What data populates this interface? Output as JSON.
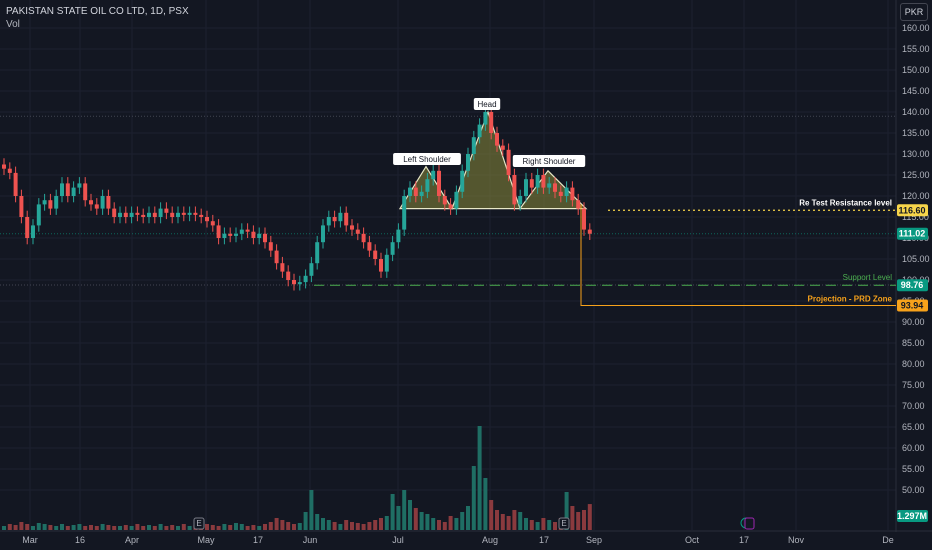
{
  "header": {
    "symbol_line": "PAKISTAN STATE OIL CO LTD, 1D, PSX",
    "volume_label": "Vol"
  },
  "currency_button": "PKR",
  "price_axis": {
    "ticks": [
      "160.00",
      "155.00",
      "150.00",
      "145.00",
      "140.00",
      "135.00",
      "130.00",
      "125.00",
      "120.00",
      "115.00",
      "110.00",
      "105.00",
      "100.00",
      "95.00",
      "90.00",
      "85.00",
      "80.00",
      "75.00",
      "70.00",
      "65.00",
      "60.00",
      "55.00",
      "50.00"
    ],
    "badges": [
      {
        "text": "116.60",
        "color": "#f7d54a",
        "text_color": "#131722"
      },
      {
        "text": "111.02",
        "color": "#089981",
        "text_color": "#ffffff"
      },
      {
        "text": "98.76",
        "color": "#089981",
        "text_color": "#ffffff"
      },
      {
        "text": "93.94",
        "color": "#f7a21b",
        "text_color": "#131722"
      },
      {
        "text": "1.297M",
        "color": "#089981",
        "text_color": "#ffffff"
      }
    ]
  },
  "time_axis": {
    "labels": [
      "Mar",
      "16",
      "Apr",
      "May",
      "17",
      "Jun",
      "Jul",
      "Aug",
      "17",
      "Sep",
      "Oct",
      "17",
      "Nov",
      "De"
    ]
  },
  "annotations": {
    "left_shoulder": "Left Shoulder",
    "head": "Head",
    "right_shoulder": "Right Shoulder",
    "resistance": "Re Test Resistance level",
    "support": "Support Level",
    "projection": "Projection - PRD Zone"
  },
  "event_markers": [
    "E",
    "E"
  ],
  "colors": {
    "background": "#131722",
    "up": "#26a69a",
    "down": "#ef5350",
    "pattern_fill": "#8a8a3a",
    "resistance": "#f7d54a",
    "support": "#4caf50",
    "projection": "#f7a21b"
  },
  "chart_data": {
    "type": "candlestick",
    "title": "PAKISTAN STATE OIL CO LTD, 1D, PSX",
    "ylim": [
      48,
      164
    ],
    "price_levels": {
      "resistance": 116.6,
      "last": 111.02,
      "support": 98.76,
      "projection": 93.94
    },
    "pattern": {
      "name": "Head and Shoulders",
      "points": [
        {
          "label": "neckline-start",
          "value": 117
        },
        {
          "label": "Left Shoulder",
          "value": 127
        },
        {
          "label": "trough",
          "value": 117
        },
        {
          "label": "Head",
          "value": 140
        },
        {
          "label": "trough",
          "value": 117
        },
        {
          "label": "Right Shoulder",
          "value": 126
        },
        {
          "label": "neckline-end",
          "value": 117
        }
      ]
    },
    "closes": [
      126.5,
      125.5,
      120,
      115,
      110,
      113,
      118,
      119,
      117,
      120,
      123,
      120,
      122,
      123,
      119,
      118,
      117,
      120,
      117,
      115,
      116,
      115,
      116,
      115.5,
      115,
      116,
      115,
      117,
      116,
      115,
      116,
      115.5,
      116,
      115.5,
      115,
      114,
      113,
      110,
      111,
      110.5,
      111,
      112,
      111.5,
      110,
      111,
      109,
      107,
      104,
      102,
      100,
      99,
      99.5,
      101,
      104,
      109,
      113,
      115,
      114,
      116,
      113,
      112,
      111,
      109,
      107,
      105,
      102,
      106,
      109,
      112,
      120,
      122,
      120,
      121,
      124,
      126,
      120,
      118,
      117,
      121,
      126,
      130,
      134,
      137,
      140,
      135,
      132,
      131,
      125,
      118,
      120,
      124,
      122,
      125,
      122,
      123,
      121,
      120,
      122,
      119,
      117,
      112,
      111.02
    ],
    "volumes_m": [
      0.2,
      0.3,
      0.25,
      0.4,
      0.3,
      0.2,
      0.35,
      0.3,
      0.25,
      0.2,
      0.3,
      0.2,
      0.25,
      0.3,
      0.2,
      0.25,
      0.2,
      0.3,
      0.25,
      0.2,
      0.2,
      0.25,
      0.2,
      0.3,
      0.2,
      0.25,
      0.2,
      0.3,
      0.2,
      0.25,
      0.2,
      0.3,
      0.2,
      0.25,
      0.2,
      0.3,
      0.25,
      0.2,
      0.3,
      0.25,
      0.35,
      0.3,
      0.2,
      0.25,
      0.2,
      0.3,
      0.4,
      0.6,
      0.5,
      0.4,
      0.3,
      0.35,
      0.9,
      2.0,
      0.8,
      0.6,
      0.5,
      0.4,
      0.3,
      0.5,
      0.4,
      0.35,
      0.3,
      0.4,
      0.5,
      0.6,
      0.7,
      1.8,
      1.2,
      2.0,
      1.5,
      1.1,
      0.9,
      0.8,
      0.6,
      0.5,
      0.4,
      0.7,
      0.6,
      0.9,
      1.2,
      3.2,
      5.2,
      2.6,
      1.5,
      1.0,
      0.8,
      0.7,
      1.0,
      0.9,
      0.6,
      0.5,
      0.4,
      0.6,
      0.5,
      0.4,
      0.6,
      1.9,
      1.2,
      0.9,
      1.0,
      1.297
    ],
    "x_labels": [
      "Mar",
      "16",
      "Apr",
      "May",
      "17",
      "Jun",
      "Jul",
      "Aug",
      "17",
      "Sep",
      "Oct",
      "17",
      "Nov",
      "De"
    ],
    "grid": true
  }
}
